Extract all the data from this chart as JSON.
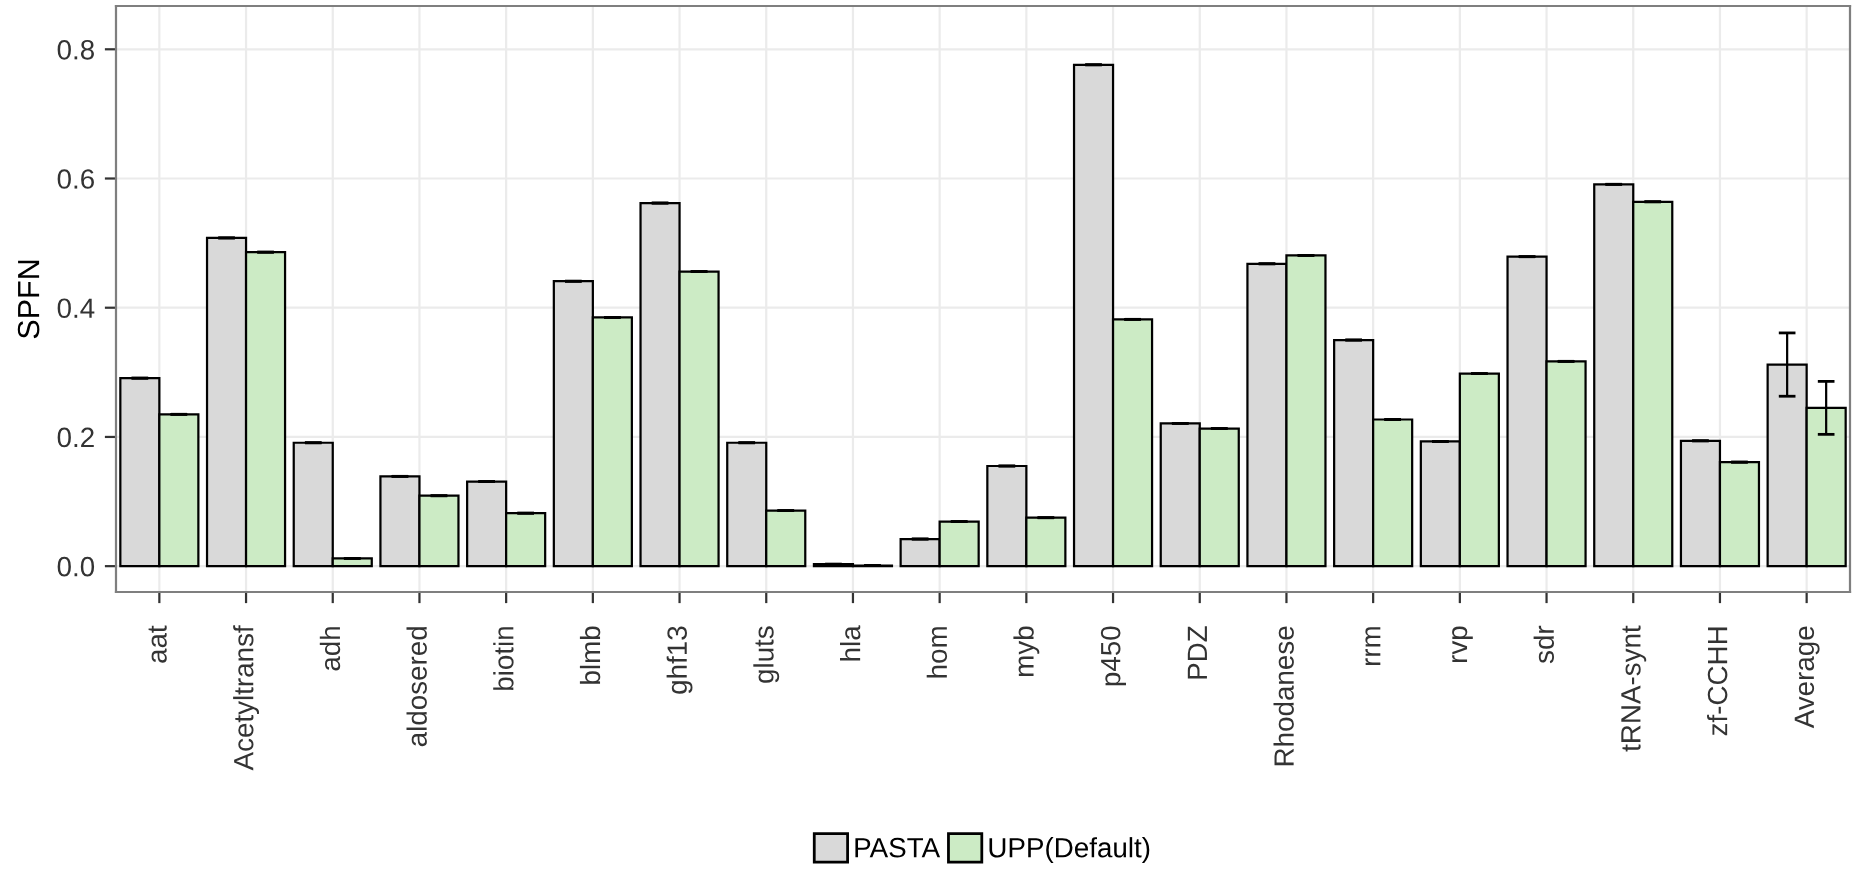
{
  "chart_data": {
    "type": "bar",
    "ylabel": "SPFN",
    "categories": [
      "aat",
      "Acetyltransf",
      "adh",
      "aldosered",
      "biotin",
      "blmb",
      "ghf13",
      "gluts",
      "hla",
      "hom",
      "myb",
      "p450",
      "PDZ",
      "Rhodanese",
      "rrm",
      "rvp",
      "sdr",
      "tRNA-synt",
      "zf-CCHH",
      "Average"
    ],
    "series": [
      {
        "name": "PASTA",
        "color": "#d9d9d9",
        "values": [
          0.291,
          0.508,
          0.191,
          0.139,
          0.131,
          0.441,
          0.562,
          0.191,
          0.003,
          0.042,
          0.155,
          0.776,
          0.221,
          0.468,
          0.35,
          0.193,
          0.479,
          0.591,
          0.194,
          0.312
        ],
        "errors": [
          0,
          0,
          0,
          0,
          0,
          0,
          0,
          0,
          0,
          0,
          0,
          0,
          0,
          0,
          0,
          0,
          0,
          0,
          0,
          0.049
        ]
      },
      {
        "name": "UPP(Default)",
        "color": "#ccebc5",
        "values": [
          0.235,
          0.486,
          0.012,
          0.109,
          0.082,
          0.385,
          0.456,
          0.086,
          0.001,
          0.069,
          0.075,
          0.382,
          0.213,
          0.481,
          0.227,
          0.298,
          0.317,
          0.564,
          0.161,
          0.245
        ],
        "errors": [
          0,
          0,
          0,
          0,
          0,
          0,
          0,
          0,
          0,
          0,
          0,
          0,
          0,
          0,
          0,
          0,
          0,
          0,
          0,
          0.041
        ]
      }
    ],
    "ylim": [
      -0.04,
      0.867
    ],
    "yticks": [
      {
        "value": 0,
        "label": "0.0"
      },
      0.2,
      0.4,
      0.6,
      0.8
    ],
    "grid": true,
    "legend": "bottom"
  }
}
